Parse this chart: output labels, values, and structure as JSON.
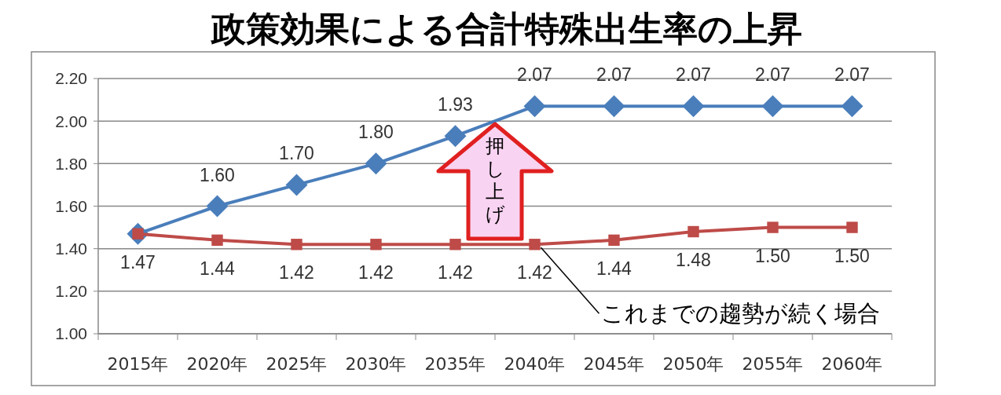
{
  "chart_data": {
    "type": "line",
    "title": "政策効果による合計特殊出生率の上昇",
    "categories": [
      "2015年",
      "2020年",
      "2025年",
      "2030年",
      "2035年",
      "2040年",
      "2045年",
      "2050年",
      "2055年",
      "2060年"
    ],
    "series": [
      {
        "color": "#4a7ebb",
        "marker": "diamond",
        "values": [
          1.47,
          1.6,
          1.7,
          1.8,
          1.93,
          2.07,
          2.07,
          2.07,
          2.07,
          2.07
        ],
        "value_labels": [
          null,
          "1.60",
          "1.70",
          "1.80",
          "1.93",
          "2.07",
          "2.07",
          "2.07",
          "2.07",
          "2.07"
        ]
      },
      {
        "color": "#be4b48",
        "marker": "square",
        "values": [
          1.47,
          1.44,
          1.42,
          1.42,
          1.42,
          1.42,
          1.44,
          1.48,
          1.5,
          1.5
        ],
        "value_labels": [
          "1.47",
          "1.44",
          "1.42",
          "1.42",
          "1.42",
          "1.42",
          "1.44",
          "1.48",
          "1.50",
          "1.50"
        ]
      }
    ],
    "ylim": [
      1.0,
      2.2
    ],
    "yticks": [
      {
        "value": 1.0,
        "label": "1.00"
      },
      {
        "value": 1.2,
        "label": "1.20"
      },
      {
        "value": 1.4,
        "label": "1.40"
      },
      {
        "value": 1.6,
        "label": "1.60"
      },
      {
        "value": 1.8,
        "label": "1.80"
      },
      {
        "value": 2.0,
        "label": "2.00"
      },
      {
        "value": 2.2,
        "label": "2.20"
      }
    ],
    "grid": "y",
    "line_style": "solid",
    "annotations": [
      "押し上げ",
      {
        "text": "これまでの趨勢が続く場合",
        "x": "2040年",
        "y": 1.42
      }
    ]
  }
}
